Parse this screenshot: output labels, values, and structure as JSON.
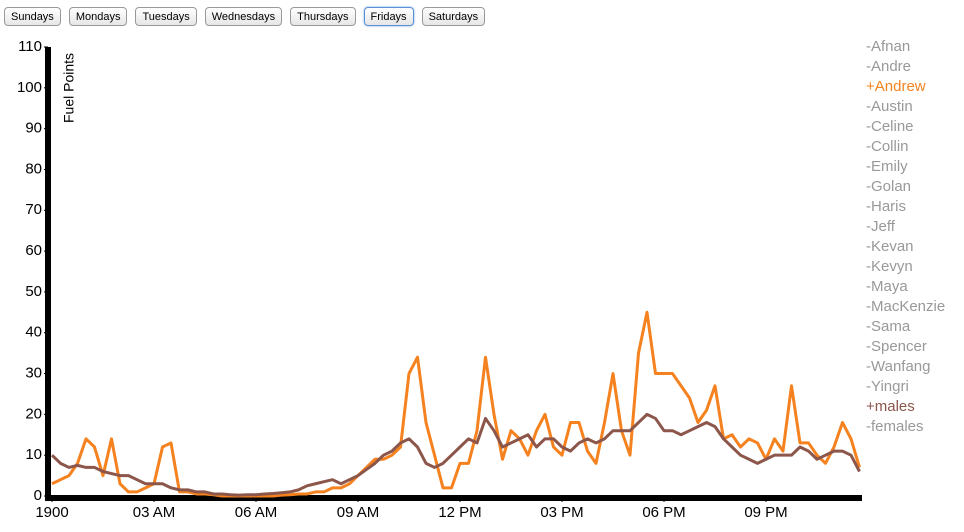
{
  "buttons": [
    "Sundays",
    "Mondays",
    "Tuesdays",
    "Wednesdays",
    "Thursdays",
    "Fridays",
    "Saturdays"
  ],
  "selected_button": 5,
  "chart_data": {
    "type": "line",
    "y_label": "Fuel Points",
    "xlim": [
      0,
      24
    ],
    "ylim": [
      0,
      110
    ],
    "yticks": [
      0,
      10,
      20,
      30,
      40,
      50,
      60,
      70,
      80,
      90,
      100,
      110
    ],
    "xticks": [
      {
        "value": 0,
        "label": "1900"
      },
      {
        "value": 3,
        "label": "03 AM"
      },
      {
        "value": 6,
        "label": "06 AM"
      },
      {
        "value": 9,
        "label": "09 AM"
      },
      {
        "value": 12,
        "label": "12 PM"
      },
      {
        "value": 15,
        "label": "03 PM"
      },
      {
        "value": 18,
        "label": "06 PM"
      },
      {
        "value": 21,
        "label": "09 PM"
      }
    ],
    "x": [
      0,
      0.25,
      0.5,
      0.75,
      1,
      1.25,
      1.5,
      1.75,
      2,
      2.25,
      2.5,
      2.75,
      3,
      3.25,
      3.5,
      3.75,
      4,
      4.25,
      4.5,
      4.75,
      5,
      5.25,
      5.5,
      5.75,
      6,
      6.25,
      6.5,
      6.75,
      7,
      7.25,
      7.5,
      7.75,
      8,
      8.25,
      8.5,
      8.75,
      9,
      9.25,
      9.5,
      9.75,
      10,
      10.25,
      10.5,
      10.75,
      11,
      11.25,
      11.5,
      11.75,
      12,
      12.25,
      12.5,
      12.75,
      13,
      13.25,
      13.5,
      13.75,
      14,
      14.25,
      14.5,
      14.75,
      15,
      15.25,
      15.5,
      15.75,
      16,
      16.25,
      16.5,
      16.75,
      17,
      17.25,
      17.5,
      17.75,
      18,
      18.25,
      18.5,
      18.75,
      19,
      19.25,
      19.5,
      19.75,
      20,
      20.25,
      20.5,
      20.75,
      21,
      21.25,
      21.5,
      21.75,
      22,
      22.25,
      22.5,
      22.75,
      23,
      23.25,
      23.5,
      23.75
    ],
    "series": [
      {
        "name": "+Andrew",
        "color": "#f5821f",
        "values": [
          3,
          4,
          5,
          8,
          14,
          12,
          5,
          14,
          3,
          1,
          1,
          2,
          3,
          12,
          13,
          1,
          1,
          0.5,
          0.5,
          0.3,
          0,
          0,
          0,
          0,
          0,
          0,
          0,
          0.2,
          0.3,
          0.5,
          0.5,
          1,
          1,
          2,
          2,
          3,
          5,
          7,
          9,
          9,
          10,
          12,
          30,
          34,
          18,
          10,
          2,
          2,
          8,
          8,
          16,
          34,
          20,
          9,
          16,
          14,
          10,
          16,
          20,
          12,
          10,
          18,
          18,
          11,
          8,
          18,
          30,
          16,
          10,
          35,
          45,
          30,
          30,
          30,
          27,
          24,
          18,
          21,
          27,
          14,
          15,
          12,
          14,
          13,
          9,
          14,
          11,
          27,
          13,
          13,
          10,
          8,
          12,
          18,
          14,
          7
        ]
      },
      {
        "name": "+males",
        "color": "#8c564b",
        "values": [
          10,
          8,
          7,
          7.5,
          7,
          7,
          6,
          5.5,
          5,
          5,
          4,
          3,
          3,
          3,
          2,
          1.5,
          1.5,
          1,
          1,
          0.5,
          0.5,
          0.3,
          0.2,
          0.3,
          0.3,
          0.5,
          0.6,
          0.8,
          1,
          1.5,
          2.5,
          3,
          3.5,
          4,
          3,
          4,
          5,
          6.5,
          8,
          10,
          11,
          13,
          14,
          12,
          8,
          7,
          8,
          10,
          12,
          14,
          13,
          19,
          16,
          12,
          13,
          14,
          15,
          12,
          14,
          14,
          12,
          11,
          13,
          14,
          13,
          14,
          16,
          16,
          16,
          18,
          20,
          19,
          16,
          16,
          15,
          16,
          17,
          18,
          17,
          14,
          12,
          10,
          9,
          8,
          9,
          10,
          10,
          10,
          12,
          11,
          9,
          10,
          11,
          11,
          10,
          6
        ]
      }
    ],
    "inactive_series": [
      "-Afnan",
      "-Andre",
      "-Austin",
      "-Celine",
      "-Collin",
      "-Emily",
      "-Golan",
      "-Haris",
      "-Jeff",
      "-Kevan",
      "-Kevyn",
      "-Maya",
      "-MacKenzie",
      "-Sama",
      "-Spencer",
      "-Wanfang",
      "-Yingri",
      "-females"
    ],
    "inactive_color": "#999999"
  }
}
